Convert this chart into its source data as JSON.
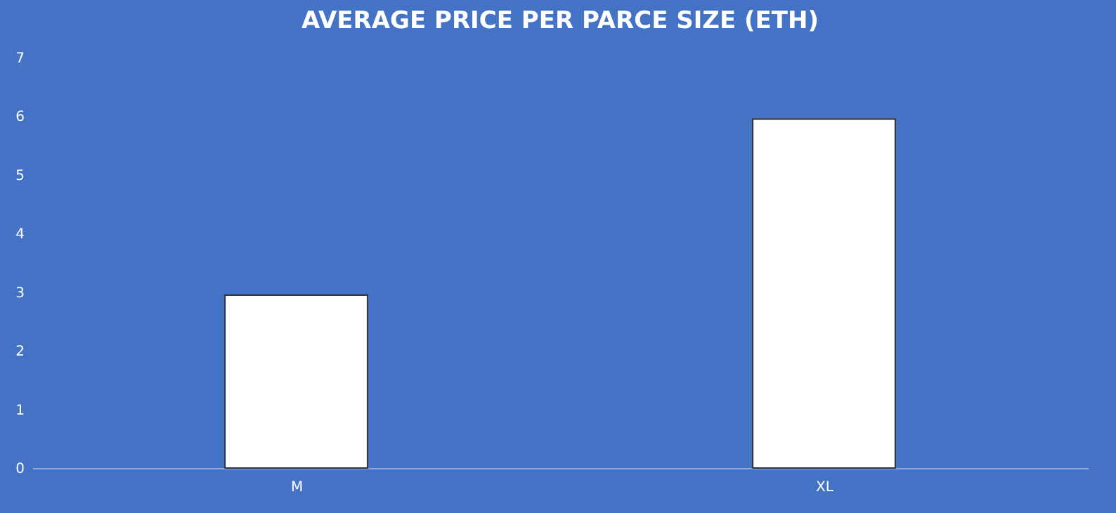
{
  "chart_data": {
    "type": "bar",
    "title": "AVERAGE PRICE PER PARCE SIZE (ETH)",
    "categories": [
      "M",
      "XL"
    ],
    "values": [
      2.95,
      5.95
    ],
    "color": "#ffffff",
    "ylim": [
      0,
      7
    ],
    "yticks": [
      0,
      1,
      2,
      3,
      4,
      5,
      6,
      7
    ]
  }
}
